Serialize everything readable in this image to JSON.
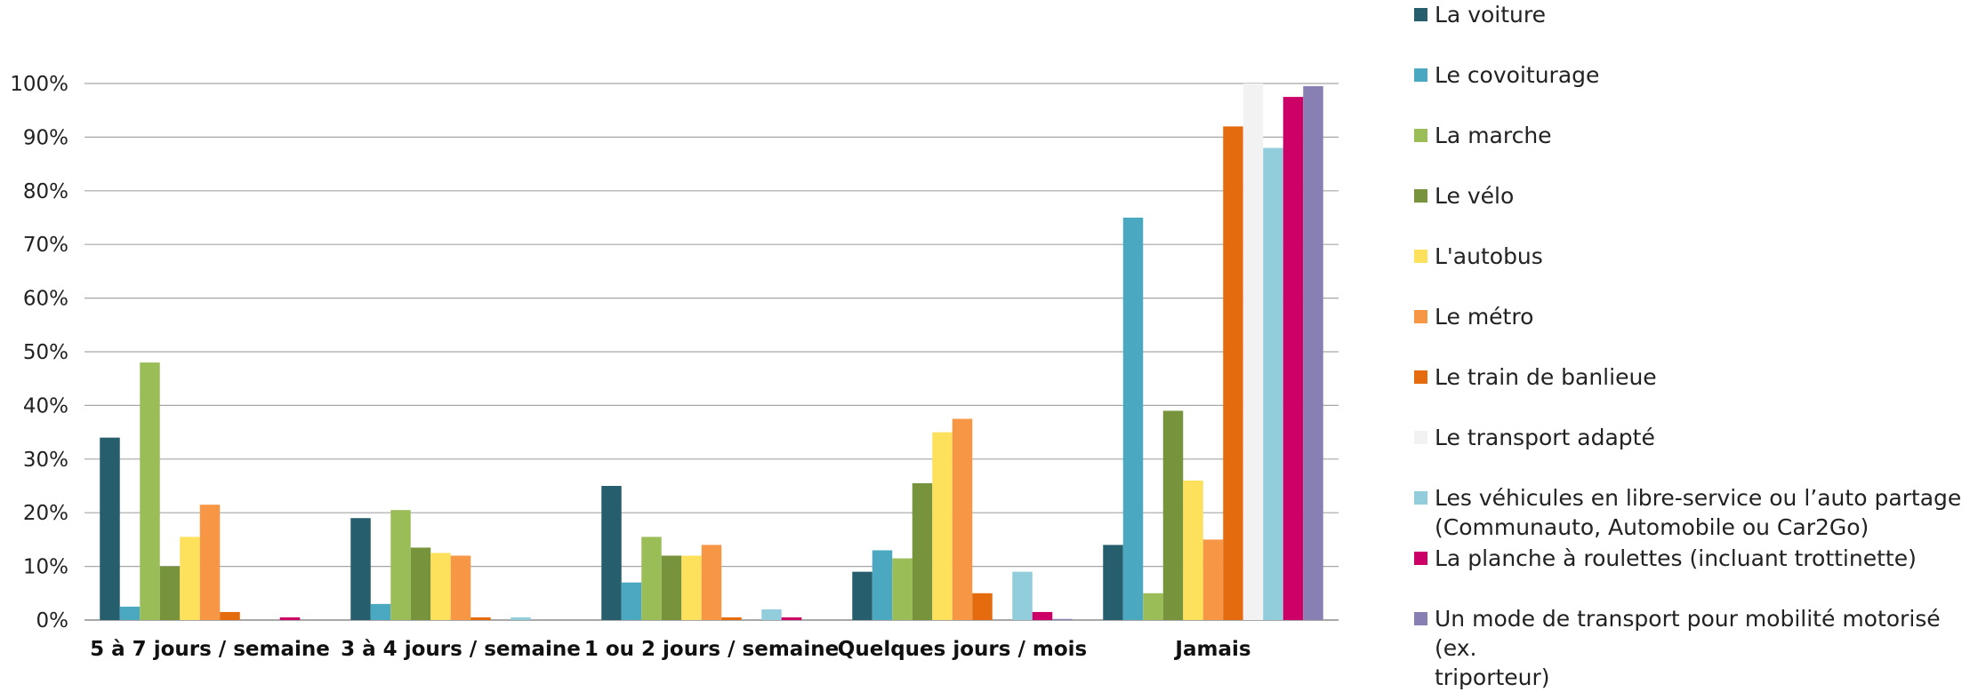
{
  "chart_data": {
    "type": "bar",
    "categories": [
      "5 à 7 jours / semaine",
      "3 à 4 jours / semaine",
      "1 ou 2 jours / semaine",
      "Quelques jours / mois",
      "Jamais"
    ],
    "ylim": [
      0,
      100
    ],
    "yticks": [
      "0%",
      "10%",
      "20%",
      "30%",
      "40%",
      "50%",
      "60%",
      "70%",
      "80%",
      "90%",
      "100%"
    ],
    "grid": true,
    "legend_position": "right",
    "series": [
      {
        "name": "La voiture",
        "color": "#275e6d",
        "values": [
          34,
          19,
          25,
          9,
          14
        ]
      },
      {
        "name": "Le covoiturage",
        "color": "#4aa9c1",
        "values": [
          2.5,
          3,
          7,
          13,
          75
        ]
      },
      {
        "name": "La marche",
        "color": "#9bbd58",
        "values": [
          48,
          20.5,
          15.5,
          11.5,
          5
        ]
      },
      {
        "name": "Le vélo",
        "color": "#77933c",
        "values": [
          10,
          13.5,
          12,
          25.5,
          39
        ]
      },
      {
        "name": "L'autobus",
        "color": "#fde15c",
        "values": [
          15.5,
          12.5,
          12,
          35,
          26
        ]
      },
      {
        "name": "Le métro",
        "color": "#f79746",
        "values": [
          21.5,
          12,
          14,
          37.5,
          15
        ]
      },
      {
        "name": "Le train de banlieue",
        "color": "#e56b0f",
        "values": [
          1.5,
          0.5,
          0.5,
          5,
          92
        ]
      },
      {
        "name": "Le transport adapté",
        "color": "#f2f2f2",
        "values": [
          0,
          0,
          0,
          0,
          100
        ]
      },
      {
        "name": "Les véhicules en libre-service ou l’auto partage\n(Communauto, Automobile ou Car2Go)",
        "color": "#92cddc",
        "values": [
          0,
          0.5,
          2,
          9,
          88
        ]
      },
      {
        "name": "La planche à roulettes (incluant trottinette)",
        "color": "#cc0066",
        "values": [
          0.5,
          0,
          0.5,
          1.5,
          97.5
        ]
      },
      {
        "name": "Un mode de transport pour mobilité motorisé (ex.\ntriporteur)",
        "color": "#8880b2",
        "values": [
          0,
          0,
          0,
          0.2,
          99.5
        ]
      }
    ]
  }
}
